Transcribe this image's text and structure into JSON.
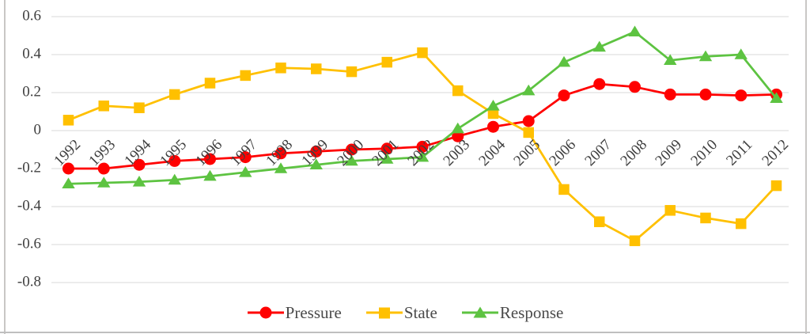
{
  "figure": {
    "background": "#FFFFFF",
    "border_color": "#C9C7C5",
    "gridline_color": "#D9D9D9",
    "tick_text_color": "#404040"
  },
  "chart_data": {
    "type": "line",
    "title": "",
    "xlabel": "",
    "ylabel": "",
    "grid": "horizontal",
    "legend_position": "bottom",
    "ylim": [
      -0.8,
      0.6
    ],
    "y_ticks": [
      0.6,
      0.4,
      0.2,
      0,
      -0.2,
      -0.4,
      -0.6,
      -0.8
    ],
    "y_tick_labels": [
      "0.6",
      "0.4",
      "0.2",
      "0",
      "-0.2",
      "-0.4",
      "-0.6",
      "-0.8"
    ],
    "categories": [
      "1992",
      "1993",
      "1994",
      "1995",
      "1996",
      "1997",
      "1998",
      "1999",
      "2000",
      "2001",
      "2002",
      "2003",
      "2004",
      "2005",
      "2006",
      "2007",
      "2008",
      "2009",
      "2010",
      "2011",
      "2012"
    ],
    "series": [
      {
        "name": "Pressure",
        "color": "#FF0000",
        "marker": "circle",
        "values": [
          -0.2,
          -0.2,
          -0.18,
          -0.16,
          -0.15,
          -0.14,
          -0.12,
          -0.11,
          -0.1,
          -0.095,
          -0.085,
          -0.03,
          0.02,
          0.05,
          0.185,
          0.245,
          0.23,
          0.19,
          0.19,
          0.185,
          0.19
        ]
      },
      {
        "name": "State",
        "color": "#FFC000",
        "marker": "square",
        "values": [
          0.055,
          0.13,
          0.12,
          0.19,
          0.25,
          0.29,
          0.33,
          0.325,
          0.31,
          0.36,
          0.41,
          0.21,
          0.09,
          -0.01,
          -0.31,
          -0.48,
          -0.58,
          -0.42,
          -0.46,
          -0.49,
          -0.29
        ]
      },
      {
        "name": "Response",
        "color": "#5DC341",
        "marker": "triangle",
        "values": [
          -0.28,
          -0.275,
          -0.27,
          -0.26,
          -0.24,
          -0.22,
          -0.2,
          -0.18,
          -0.16,
          -0.15,
          -0.14,
          0.01,
          0.13,
          0.21,
          0.36,
          0.44,
          0.52,
          0.37,
          0.39,
          0.4,
          0.17
        ]
      }
    ]
  }
}
